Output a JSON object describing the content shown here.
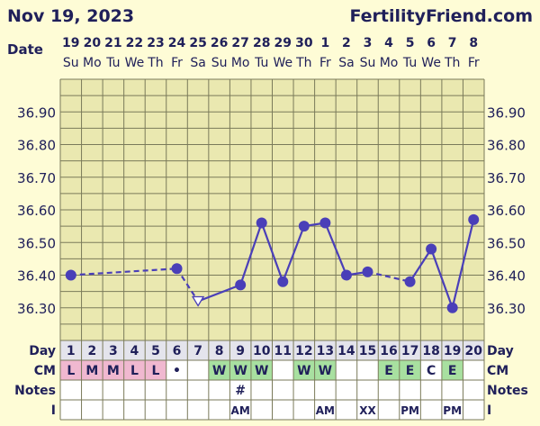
{
  "header": {
    "date_title": "Nov 19, 2023",
    "site": "FertilityFriend.com"
  },
  "row_labels": {
    "date": "Date",
    "day": "Day",
    "cm": "CM",
    "notes": "Notes",
    "i": "I"
  },
  "colors": {
    "background": "#fefcd6",
    "plot_background": "#eae8b0",
    "grid": "#7a7a5a",
    "line": "#4a3fb8",
    "text": "#20205a",
    "cm_menstruation": "#f0b8d0",
    "cm_watery": "#a8e0a0",
    "cm_eggwhite": "#a8e0a0"
  },
  "chart_data": {
    "type": "line",
    "title": "",
    "ylim": [
      36.2,
      37.0
    ],
    "y_ticks": [
      "36.90",
      "36.80",
      "36.70",
      "36.60",
      "36.50",
      "36.40",
      "36.30"
    ],
    "dates": [
      "19",
      "20",
      "21",
      "22",
      "23",
      "24",
      "25",
      "26",
      "27",
      "28",
      "29",
      "30",
      "1",
      "2",
      "3",
      "4",
      "5",
      "6",
      "7",
      "8"
    ],
    "weekdays": [
      "Su",
      "Mo",
      "Tu",
      "We",
      "Th",
      "Fr",
      "Sa",
      "Su",
      "Mo",
      "Tu",
      "We",
      "Th",
      "Fr",
      "Sa",
      "Su",
      "Mo",
      "Tu",
      "We",
      "Th",
      "Fr"
    ],
    "days": [
      "1",
      "2",
      "3",
      "4",
      "5",
      "6",
      "7",
      "8",
      "9",
      "10",
      "11",
      "12",
      "13",
      "14",
      "15",
      "16",
      "17",
      "18",
      "19",
      "20"
    ],
    "temps": [
      36.4,
      null,
      null,
      null,
      null,
      36.42,
      36.32,
      null,
      36.37,
      36.56,
      36.38,
      36.55,
      36.56,
      36.4,
      36.41,
      null,
      36.38,
      36.48,
      36.3,
      36.57
    ],
    "marker": [
      "circle",
      null,
      null,
      null,
      null,
      "circle",
      "triangle",
      null,
      "circle",
      "circle",
      "circle",
      "circle",
      "circle",
      "circle",
      "circle",
      null,
      "circle",
      "circle",
      "circle",
      "circle"
    ],
    "segments": [
      {
        "from": 1,
        "to": 6,
        "style": "dashed"
      },
      {
        "from": 6,
        "to": 7,
        "style": "dashed"
      },
      {
        "from": 7,
        "to": 9,
        "style": "solid"
      },
      {
        "from": 9,
        "to": 10,
        "style": "solid"
      },
      {
        "from": 10,
        "to": 11,
        "style": "solid"
      },
      {
        "from": 11,
        "to": 12,
        "style": "solid"
      },
      {
        "from": 12,
        "to": 13,
        "style": "solid"
      },
      {
        "from": 13,
        "to": 14,
        "style": "solid"
      },
      {
        "from": 14,
        "to": 15,
        "style": "solid"
      },
      {
        "from": 15,
        "to": 17,
        "style": "dashed"
      },
      {
        "from": 17,
        "to": 18,
        "style": "solid"
      },
      {
        "from": 18,
        "to": 19,
        "style": "solid"
      },
      {
        "from": 19,
        "to": 20,
        "style": "solid"
      }
    ],
    "cm": [
      "L",
      "M",
      "M",
      "L",
      "L",
      "•",
      "",
      "W",
      "W",
      "W",
      "",
      "W",
      "W",
      "",
      "",
      "E",
      "E",
      "C",
      "E",
      ""
    ],
    "cm_color": [
      "pink",
      "pink",
      "pink",
      "pink",
      "pink",
      "",
      "",
      "green",
      "green",
      "green",
      "",
      "green",
      "green",
      "",
      "",
      "green",
      "green",
      "",
      "green",
      ""
    ],
    "notes": [
      "",
      "",
      "",
      "",
      "",
      "",
      "",
      "",
      "#",
      "",
      "",
      "",
      "",
      "",
      "",
      "",
      "",
      "",
      "",
      ""
    ],
    "i": [
      "",
      "",
      "",
      "",
      "",
      "",
      "",
      "",
      "AM",
      "",
      "",
      "",
      "AM",
      "",
      "XX",
      "",
      "PM",
      "",
      "PM",
      ""
    ]
  }
}
